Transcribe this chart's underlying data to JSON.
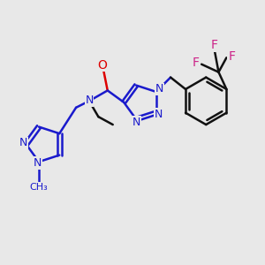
{
  "background_color": "#e8e8e8",
  "bond_color": "#1a1acc",
  "oxygen_color": "#dd0000",
  "fluorine_color": "#cc2288",
  "black_color": "#111111",
  "line_width": 1.8,
  "fig_size": [
    3.0,
    3.0
  ],
  "dpi": 100,
  "xlim": [
    0,
    10
  ],
  "ylim": [
    0,
    10
  ]
}
